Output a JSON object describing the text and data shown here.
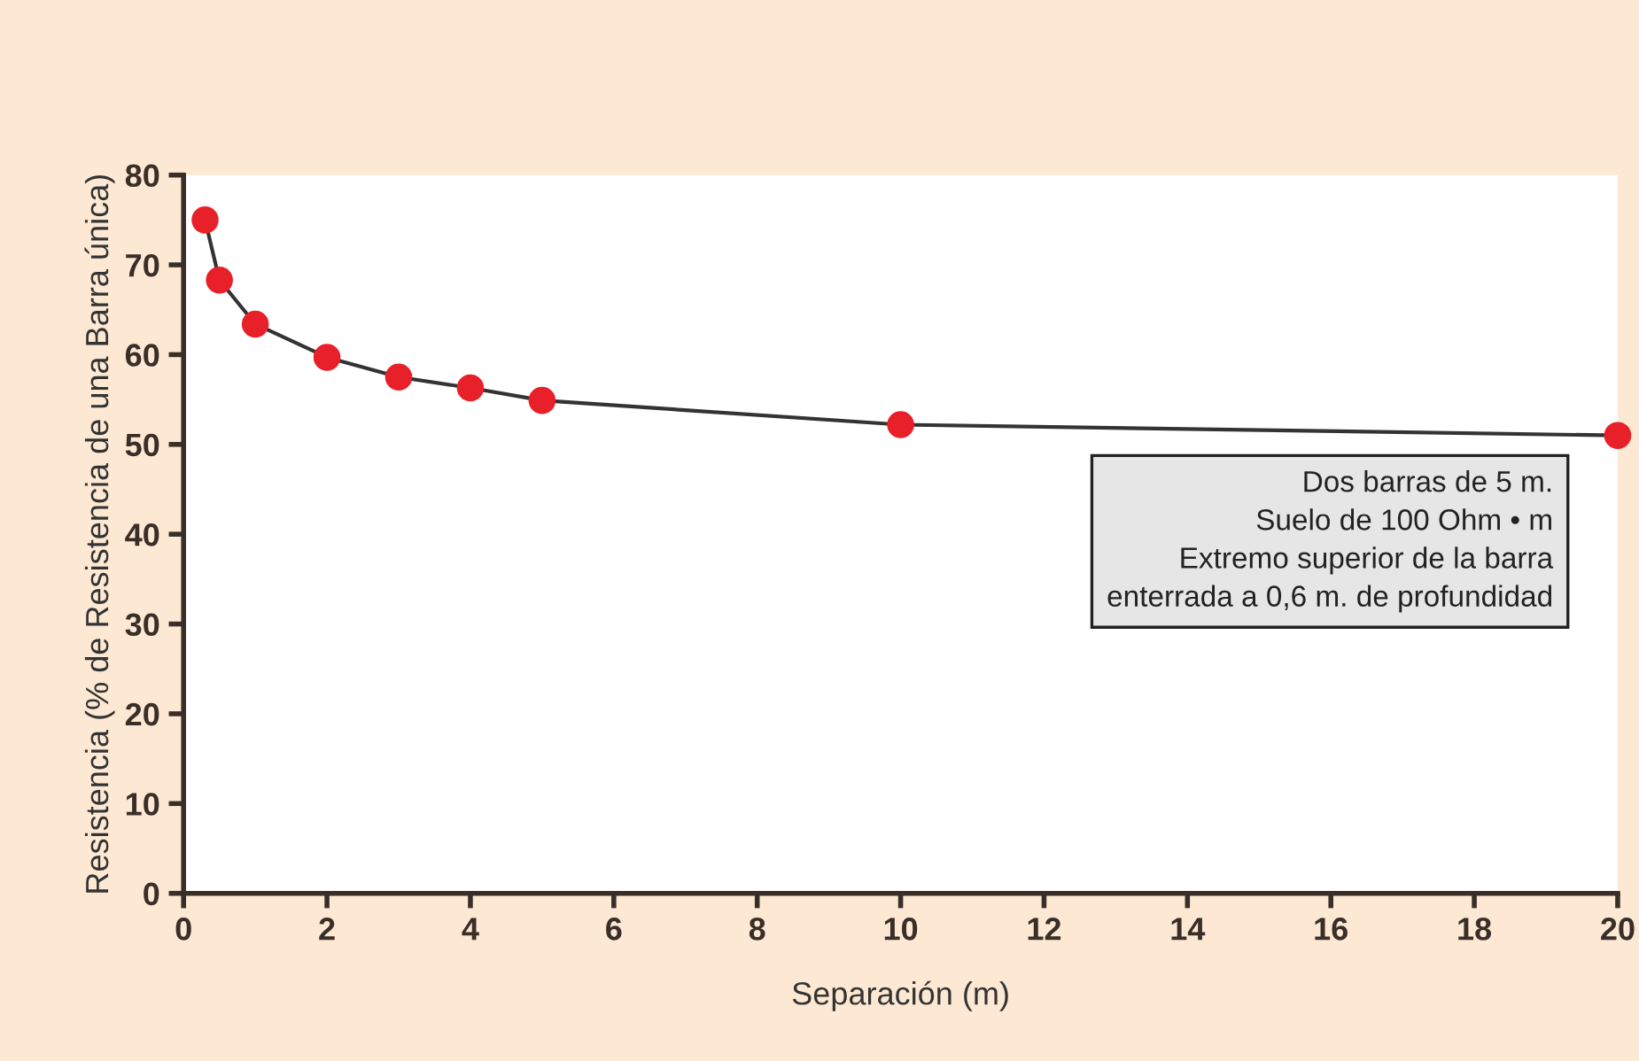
{
  "chart_data": {
    "type": "line",
    "xlabel": "Separación (m)",
    "ylabel": "Resistencia (% de Resistencia de una Barra única)",
    "x": [
      0.3,
      0.5,
      1,
      2,
      3,
      4,
      5,
      10,
      20
    ],
    "series": [
      {
        "color": "#e8202a",
        "values": [
          75,
          68.3,
          63.4,
          59.7,
          57.5,
          56.3,
          54.9,
          52.2,
          51
        ]
      }
    ],
    "xlim": [
      0,
      20
    ],
    "ylim": [
      0,
      80
    ],
    "xticks": [
      0,
      2,
      4,
      6,
      8,
      10,
      12,
      14,
      16,
      18,
      20
    ],
    "yticks": [
      0,
      10,
      20,
      30,
      40,
      50,
      60,
      70,
      80
    ],
    "marker": "circle",
    "line_style": "solid",
    "grid": false,
    "legend": false,
    "annotations": [
      "Dos barras de 5 m.\nSuelo de 100 Ohm • m\nExtremo superior de la barra\nenterrada a 0,6 m. de profundidad"
    ]
  }
}
